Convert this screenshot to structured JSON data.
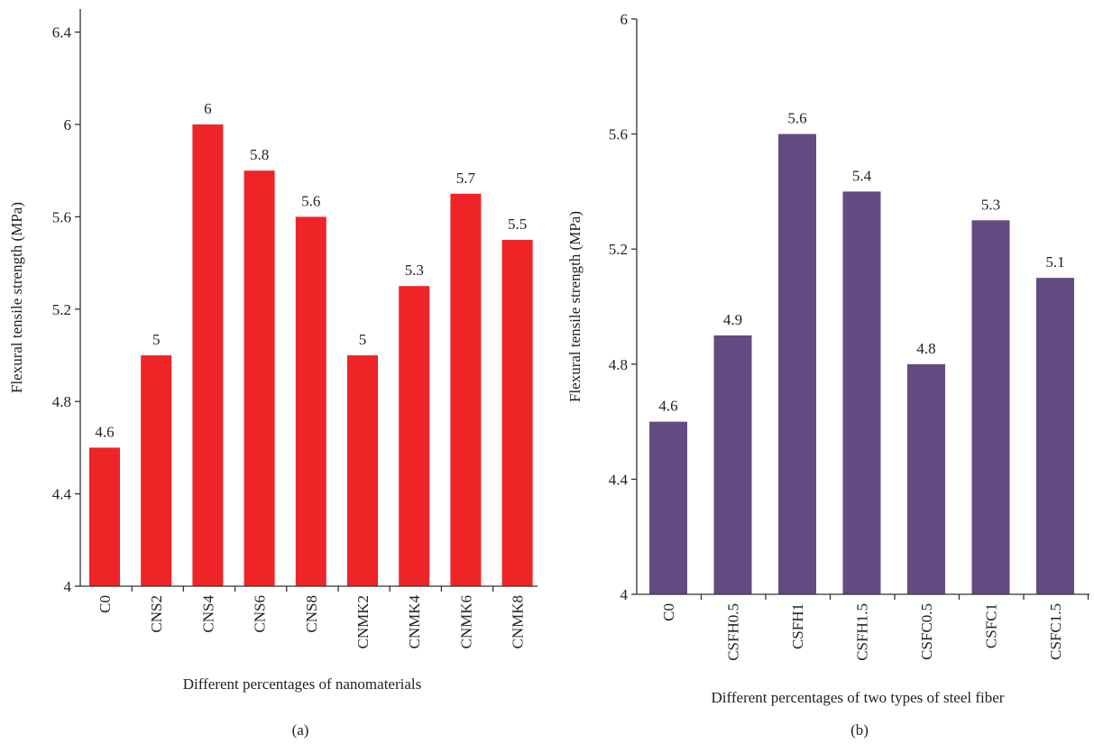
{
  "chart_data": [
    {
      "type": "bar",
      "panel_label": "(a)",
      "xlabel": "Different percentages of nanomaterials",
      "ylabel": "Flexural tensile strength (MPa)",
      "categories": [
        "C0",
        "CNS2",
        "CNS4",
        "CNS6",
        "CNS8",
        "CNMK2",
        "CNMK4",
        "CNMK6",
        "CNMK8"
      ],
      "values": [
        4.6,
        5.0,
        6.0,
        5.8,
        5.6,
        5.0,
        5.3,
        5.7,
        5.5
      ],
      "data_labels": [
        "4.6",
        "5",
        "6",
        "5.8",
        "5.6",
        "5",
        "5.3",
        "5.7",
        "5.5"
      ],
      "ylim": [
        4,
        6.5
      ],
      "yticks": [
        4,
        4.4,
        4.8,
        5.2,
        5.6,
        6,
        6.4
      ],
      "ytick_labels": [
        "4",
        "4.4",
        "4.8",
        "5.2",
        "5.6",
        "6",
        "6.4"
      ],
      "grid": false,
      "bar_color": "#ee2426"
    },
    {
      "type": "bar",
      "panel_label": "(b)",
      "xlabel": "Different percentages of two types of steel fiber",
      "ylabel": "Flexural tensile strength (MPa)",
      "categories": [
        "C0",
        "CSFH0.5",
        "CSFH1",
        "CSFH1.5",
        "CSFC0.5",
        "CSFC1",
        "CSFC1.5"
      ],
      "values": [
        4.6,
        4.9,
        5.6,
        5.4,
        4.8,
        5.3,
        5.1
      ],
      "data_labels": [
        "4.6",
        "4.9",
        "5.6",
        "5.4",
        "4.8",
        "5.3",
        "5.1"
      ],
      "ylim": [
        4,
        6
      ],
      "yticks": [
        4,
        4.4,
        4.8,
        5.2,
        5.6,
        6
      ],
      "ytick_labels": [
        "4",
        "4.4",
        "4.8",
        "5.2",
        "5.6",
        "6"
      ],
      "grid": false,
      "bar_color": "#634b82"
    }
  ]
}
